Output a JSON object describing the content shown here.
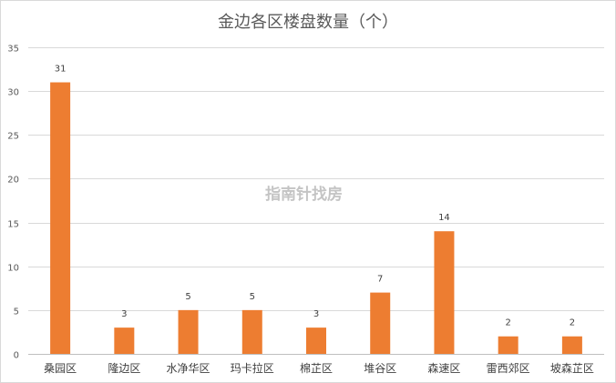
{
  "chart_data": {
    "type": "bar",
    "title": "金边各区楼盘数量（个）",
    "categories": [
      "桑园区",
      "隆边区",
      "水净华区",
      "玛卡拉区",
      "棉芷区",
      "堆谷区",
      "森速区",
      "雷西郊区",
      "坡森芷区"
    ],
    "values": [
      31,
      3,
      5,
      5,
      3,
      7,
      14,
      2,
      2
    ],
    "xlabel": "",
    "ylabel": "",
    "ylim": [
      0,
      35
    ],
    "yticks": [
      0,
      5,
      10,
      15,
      20,
      25,
      30,
      35
    ],
    "grid": true,
    "legend": "none",
    "data_labels": true,
    "bar_color": "#ed7d31"
  },
  "watermark": "指南针找房"
}
